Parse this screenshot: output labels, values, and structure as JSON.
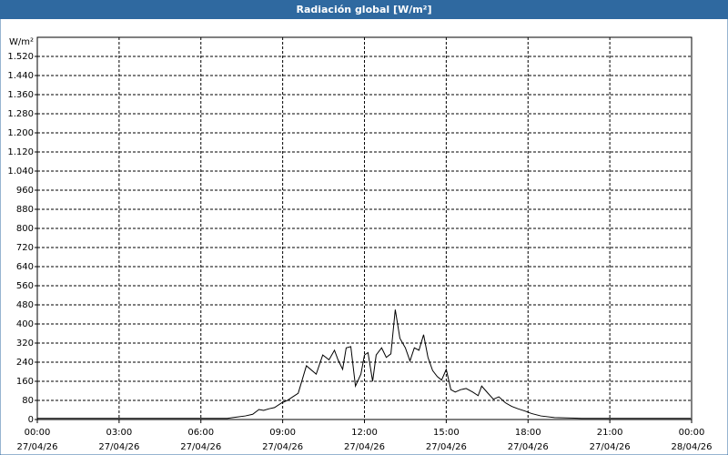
{
  "chart_data": {
    "type": "line",
    "title": "Radiación global [W/m²]",
    "y_label": "W/m²",
    "x": [
      0,
      6.97,
      7.3,
      7.63,
      7.9,
      8.13,
      8.3,
      8.5,
      8.7,
      8.97,
      9.17,
      9.37,
      9.57,
      9.87,
      10.23,
      10.47,
      10.7,
      10.9,
      11.03,
      11.2,
      11.33,
      11.5,
      11.67,
      11.87,
      12,
      12.13,
      12.3,
      12.43,
      12.63,
      12.8,
      12.97,
      13.13,
      13.3,
      13.5,
      13.67,
      13.83,
      14,
      14.17,
      14.33,
      14.5,
      14.67,
      14.83,
      15,
      15.17,
      15.33,
      15.53,
      15.73,
      15.97,
      16.17,
      16.3,
      16.53,
      16.73,
      16.93,
      17.17,
      17.4,
      17.63,
      17.9,
      18.13,
      18.47,
      18.97,
      19.97,
      23.97
    ],
    "series": [
      {
        "name": "Radiación global",
        "color": "#000000",
        "values": [
          5,
          5,
          10,
          15,
          22,
          42,
          38,
          45,
          50,
          70,
          80,
          95,
          110,
          225,
          190,
          270,
          250,
          290,
          250,
          210,
          300,
          305,
          140,
          190,
          270,
          280,
          160,
          270,
          300,
          260,
          275,
          460,
          340,
          300,
          245,
          300,
          290,
          355,
          260,
          205,
          180,
          165,
          210,
          125,
          115,
          125,
          130,
          115,
          100,
          140,
          110,
          85,
          95,
          70,
          55,
          45,
          35,
          25,
          15,
          8,
          5,
          5
        ]
      }
    ],
    "xlim": [
      0,
      24
    ],
    "xticks": [
      {
        "value": 0,
        "label": "00:00"
      },
      {
        "value": 3,
        "label": "03:00"
      },
      {
        "value": 6,
        "label": "06:00"
      },
      {
        "value": 9,
        "label": "09:00"
      },
      {
        "value": 12,
        "label": "12:00"
      },
      {
        "value": 15,
        "label": "15:00"
      },
      {
        "value": 18,
        "label": "18:00"
      },
      {
        "value": 21,
        "label": "21:00"
      },
      {
        "value": 24,
        "label": "00:00"
      }
    ],
    "xtick_dates": [
      "27/04/26",
      "27/04/26",
      "27/04/26",
      "27/04/26",
      "27/04/26",
      "27/04/26",
      "27/04/26",
      "27/04/26",
      "28/04/26"
    ],
    "ylim": [
      0,
      1600
    ],
    "yticks": [
      0,
      80,
      160,
      240,
      320,
      400,
      480,
      560,
      640,
      720,
      800,
      880,
      960,
      {
        "value": 1040,
        "label": "1.040"
      },
      {
        "value": 1120,
        "label": "1.120"
      },
      {
        "value": 1200,
        "label": "1.200"
      },
      {
        "value": 1280,
        "label": "1.280"
      },
      {
        "value": 1360,
        "label": "1.360"
      },
      {
        "value": 1440,
        "label": "1.440"
      },
      {
        "value": 1520,
        "label": "1.520"
      }
    ],
    "grid": true
  }
}
